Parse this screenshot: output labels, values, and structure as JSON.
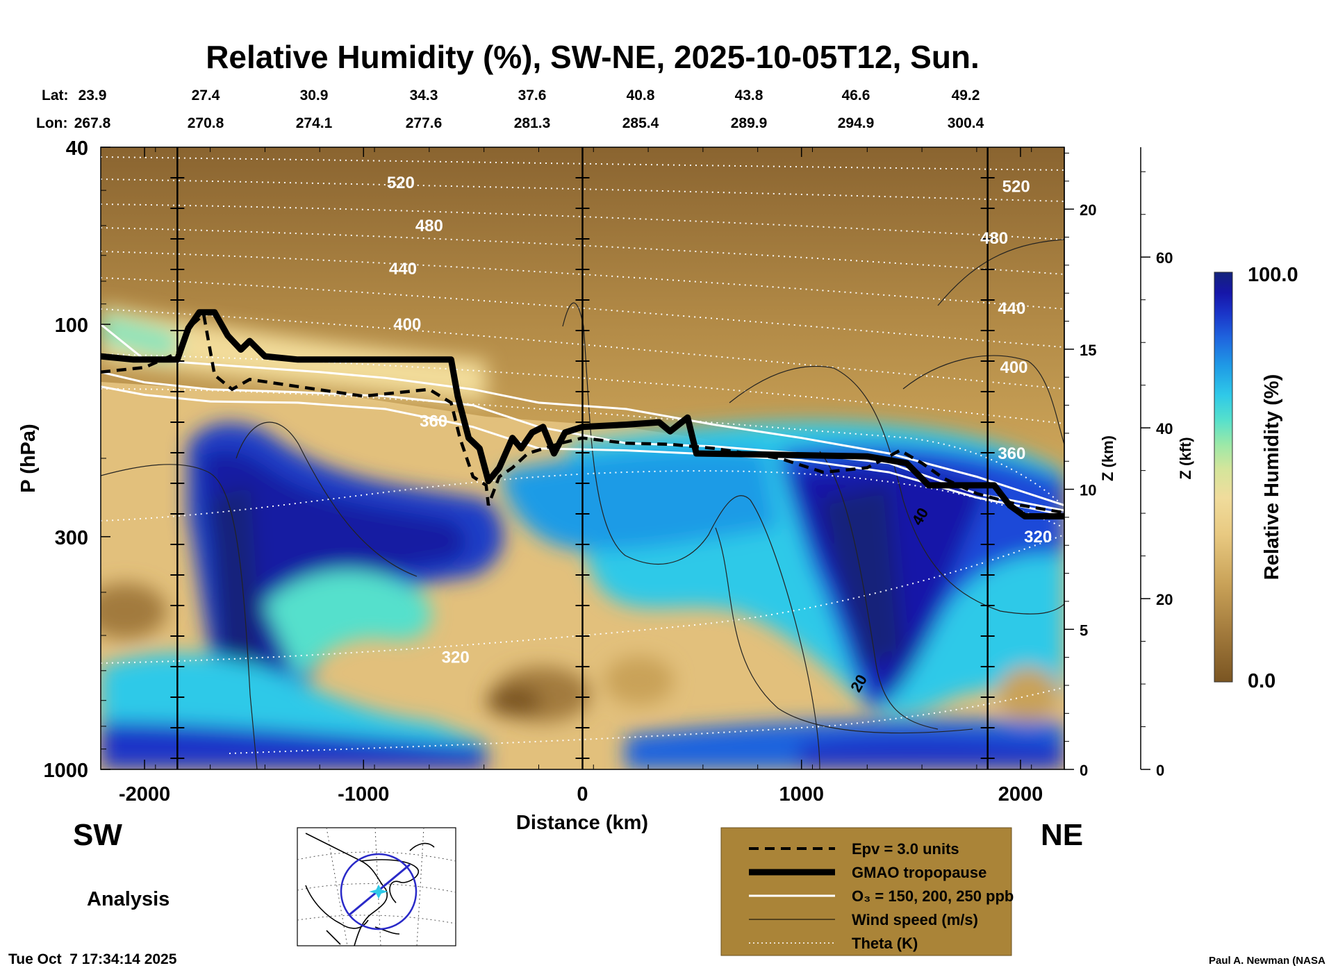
{
  "title": "Relative Humidity (%), SW-NE, 2025-10-05T12, Sun.",
  "header": {
    "lat_label": "Lat:",
    "lon_label": "Lon:",
    "lat": [
      "23.9",
      "27.4",
      "30.9",
      "34.3",
      "37.6",
      "40.8",
      "43.8",
      "46.6",
      "49.2"
    ],
    "lon": [
      "267.8",
      "270.8",
      "274.1",
      "277.6",
      "281.3",
      "285.4",
      "289.9",
      "294.9",
      "300.4"
    ]
  },
  "directions": {
    "left": "SW",
    "right": "NE"
  },
  "analysis_label": "Analysis",
  "timestamp": "Tue Oct  7 17:34:14 2025",
  "credit": "Paul A. Newman (NASA",
  "colorbar": {
    "max_label": "100.0",
    "min_label": "0.0",
    "title": "Relative Humidity (%)",
    "colors": [
      "#7a5522",
      "#a27a3c",
      "#c9a258",
      "#e8c981",
      "#f0dc9c",
      "#d4e59b",
      "#9be8a8",
      "#55e0cc",
      "#2fc9e8",
      "#1f9be6",
      "#1f64de",
      "#1a34c8",
      "#1616a8",
      "#14237a"
    ]
  },
  "legend": {
    "bg_color": "#aa8438",
    "items": [
      {
        "label": "Epv = 3.0 units",
        "style": "dashed"
      },
      {
        "label": "GMAO tropopause",
        "style": "thick"
      },
      {
        "label": "O₃ = 150, 200, 250 ppb",
        "style": "white"
      },
      {
        "label": "Wind speed (m/s)",
        "style": "thin"
      },
      {
        "label": "Theta (K)",
        "style": "dotted"
      }
    ]
  },
  "chart_data": {
    "type": "heatmap",
    "title": "Relative Humidity (%), SW-NE, 2025-10-05T12, Sun.",
    "xlabel": "Distance (km)",
    "ylabel": "P (hPa)",
    "y2label": "Z (km)",
    "y3label": "Z (kft)",
    "xlim": [
      -2200,
      2200
    ],
    "ylim_hpa": [
      1000,
      40
    ],
    "y_scale": "log",
    "x_ticks": [
      -2000,
      -1000,
      0,
      1000,
      2000
    ],
    "x_tick_labels": [
      "-2000",
      "-1000",
      "0",
      "1000",
      "2000"
    ],
    "p_ticks": [
      1000,
      300,
      100,
      40
    ],
    "p_tick_labels": [
      "1000",
      "300",
      "100",
      "40"
    ],
    "z_km_ticks": [
      0,
      5,
      10,
      15,
      20
    ],
    "z_kft_ticks": [
      0,
      20,
      40,
      60
    ],
    "vertical_markers_km": [
      -1850,
      0,
      1850
    ],
    "colorbar_range": [
      0,
      100
    ],
    "theta_labels": [
      {
        "value": "520",
        "x": -830,
        "p": 48
      },
      {
        "value": "480",
        "x": -700,
        "p": 60
      },
      {
        "value": "440",
        "x": -820,
        "p": 75
      },
      {
        "value": "400",
        "x": -800,
        "p": 100
      },
      {
        "value": "360",
        "x": -680,
        "p": 165
      },
      {
        "value": "320",
        "x": -580,
        "p": 560
      },
      {
        "value": "520",
        "x": 1980,
        "p": 49
      },
      {
        "value": "480",
        "x": 1880,
        "p": 64
      },
      {
        "value": "440",
        "x": 1960,
        "p": 92
      },
      {
        "value": "400",
        "x": 1970,
        "p": 125
      },
      {
        "value": "360",
        "x": 1960,
        "p": 195
      },
      {
        "value": "320",
        "x": 2080,
        "p": 300
      }
    ],
    "wind_labels": [
      {
        "value": "40",
        "x": 1540,
        "p": 270
      },
      {
        "value": "20",
        "x": 1260,
        "p": 640
      }
    ],
    "tropopause": [
      [
        -2200,
        118
      ],
      [
        -2050,
        120
      ],
      [
        -1850,
        120
      ],
      [
        -1800,
        102
      ],
      [
        -1750,
        94
      ],
      [
        -1680,
        94
      ],
      [
        -1620,
        106
      ],
      [
        -1560,
        114
      ],
      [
        -1520,
        109
      ],
      [
        -1450,
        118
      ],
      [
        -1300,
        120
      ],
      [
        -700,
        120
      ],
      [
        -600,
        120
      ],
      [
        -570,
        145
      ],
      [
        -520,
        180
      ],
      [
        -470,
        190
      ],
      [
        -430,
        225
      ],
      [
        -380,
        210
      ],
      [
        -320,
        180
      ],
      [
        -280,
        190
      ],
      [
        -230,
        175
      ],
      [
        -180,
        170
      ],
      [
        -130,
        195
      ],
      [
        -80,
        175
      ],
      [
        0,
        170
      ],
      [
        200,
        168
      ],
      [
        350,
        166
      ],
      [
        400,
        174
      ],
      [
        480,
        162
      ],
      [
        520,
        195
      ],
      [
        800,
        196
      ],
      [
        1300,
        198
      ],
      [
        1480,
        205
      ],
      [
        1580,
        230
      ],
      [
        1800,
        230
      ],
      [
        1880,
        230
      ],
      [
        1950,
        255
      ],
      [
        2020,
        270
      ],
      [
        2200,
        270
      ]
    ],
    "epv": [
      [
        -2200,
        128
      ],
      [
        -2000,
        125
      ],
      [
        -1850,
        116
      ],
      [
        -1780,
        100
      ],
      [
        -1730,
        95
      ],
      [
        -1680,
        130
      ],
      [
        -1600,
        140
      ],
      [
        -1520,
        133
      ],
      [
        -1300,
        138
      ],
      [
        -1000,
        145
      ],
      [
        -700,
        140
      ],
      [
        -600,
        150
      ],
      [
        -560,
        180
      ],
      [
        -500,
        220
      ],
      [
        -440,
        230
      ],
      [
        -430,
        255
      ],
      [
        -380,
        220
      ],
      [
        -320,
        210
      ],
      [
        -250,
        195
      ],
      [
        -100,
        185
      ],
      [
        0,
        180
      ],
      [
        200,
        185
      ],
      [
        400,
        186
      ],
      [
        600,
        190
      ],
      [
        900,
        200
      ],
      [
        1100,
        215
      ],
      [
        1300,
        210
      ],
      [
        1450,
        192
      ],
      [
        1550,
        205
      ],
      [
        1650,
        222
      ],
      [
        1800,
        240
      ],
      [
        2000,
        255
      ],
      [
        2200,
        265
      ]
    ],
    "ozone": [
      [
        [
          -2200,
          100
        ],
        [
          -2000,
          120
        ],
        [
          -1800,
          122
        ],
        [
          -1600,
          124
        ],
        [
          -1200,
          128
        ],
        [
          -900,
          132
        ],
        [
          -500,
          140
        ],
        [
          -200,
          150
        ],
        [
          200,
          155
        ],
        [
          600,
          168
        ],
        [
          1000,
          180
        ],
        [
          1400,
          195
        ],
        [
          1800,
          220
        ],
        [
          2200,
          255
        ]
      ],
      [
        [
          -2200,
          128
        ],
        [
          -2000,
          135
        ],
        [
          -1700,
          140
        ],
        [
          -1300,
          142
        ],
        [
          -900,
          145
        ],
        [
          -500,
          152
        ],
        [
          -200,
          170
        ],
        [
          200,
          185
        ],
        [
          600,
          188
        ],
        [
          1000,
          195
        ],
        [
          1400,
          205
        ],
        [
          1800,
          240
        ],
        [
          2200,
          262
        ]
      ],
      [
        [
          -2200,
          138
        ],
        [
          -2000,
          144
        ],
        [
          -1700,
          149
        ],
        [
          -1300,
          150
        ],
        [
          -900,
          155
        ],
        [
          -500,
          170
        ],
        [
          -200,
          190
        ],
        [
          200,
          192
        ],
        [
          600,
          196
        ],
        [
          1000,
          202
        ],
        [
          1400,
          215
        ],
        [
          1800,
          245
        ],
        [
          2200,
          268
        ]
      ]
    ]
  }
}
